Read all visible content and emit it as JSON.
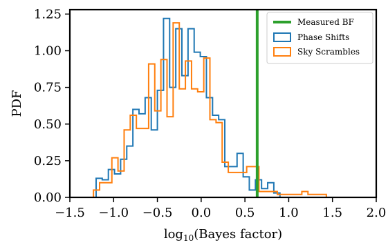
{
  "chart_data": {
    "type": "histogram",
    "title": "",
    "xlabel": "log₁₀(Bayes factor)",
    "ylabel": "PDF",
    "xlim": [
      -1.5,
      2.0
    ],
    "ylim": [
      0,
      1.28
    ],
    "xticks": [
      -1.5,
      -1.0,
      -0.5,
      0.0,
      0.5,
      1.0,
      1.5,
      2.0
    ],
    "xtick_labels": [
      "−1.5",
      "−1.0",
      "−0.5",
      "0.0",
      "0.5",
      "1.0",
      "1.5",
      "2.0"
    ],
    "yticks": [
      0.0,
      0.25,
      0.5,
      0.75,
      1.0,
      1.25
    ],
    "ytick_labels": [
      "0.00",
      "0.25",
      "0.50",
      "0.75",
      "1.00",
      "1.25"
    ],
    "grid": false,
    "legend_position": "top-right",
    "measured_bf": {
      "name": "Measured BF",
      "value": 0.64,
      "color": "#2ca02c"
    },
    "series": [
      {
        "name": "Phase Shifts",
        "color": "#1f77b4",
        "bin_edges": [
          -1.2,
          -1.13,
          -1.06,
          -0.99,
          -0.92,
          -0.85,
          -0.78,
          -0.71,
          -0.64,
          -0.57,
          -0.5,
          -0.43,
          -0.36,
          -0.29,
          -0.22,
          -0.15,
          -0.08,
          -0.01,
          0.06,
          0.13,
          0.2,
          0.27,
          0.34,
          0.41,
          0.48,
          0.55,
          0.62,
          0.69,
          0.76,
          0.83,
          0.9
        ],
        "values": [
          0.13,
          0.12,
          0.19,
          0.16,
          0.26,
          0.35,
          0.6,
          0.57,
          0.68,
          0.46,
          0.73,
          1.22,
          0.75,
          1.15,
          0.83,
          1.15,
          0.99,
          0.96,
          0.68,
          0.56,
          0.53,
          0.21,
          0.21,
          0.3,
          0.14,
          0.05,
          0.12,
          0.06,
          0.1,
          0.03
        ]
      },
      {
        "name": "Sky Scrambles",
        "color": "#ff7f0e",
        "bin_edges": [
          -1.23,
          -1.16,
          -1.09,
          -1.02,
          -0.95,
          -0.88,
          -0.81,
          -0.74,
          -0.67,
          -0.6,
          -0.53,
          -0.46,
          -0.39,
          -0.32,
          -0.25,
          -0.18,
          -0.11,
          -0.04,
          0.03,
          0.1,
          0.17,
          0.24,
          0.31,
          0.38,
          0.45,
          0.52,
          0.59,
          0.66,
          0.73,
          0.8,
          0.87,
          0.94,
          1.01,
          1.08,
          1.15,
          1.22,
          1.29,
          1.36,
          1.43
        ],
        "values": [
          0.05,
          0.1,
          0.1,
          0.27,
          0.18,
          0.46,
          0.56,
          0.47,
          0.47,
          0.91,
          0.59,
          0.94,
          0.55,
          1.19,
          0.74,
          0.93,
          0.74,
          0.72,
          0.95,
          0.53,
          0.51,
          0.24,
          0.17,
          0.17,
          0.17,
          0.21,
          0.21,
          0.04,
          0.04,
          0.04,
          0.02,
          0.02,
          0.02,
          0.02,
          0.04,
          0.02,
          0.02,
          0.02
        ]
      }
    ]
  }
}
